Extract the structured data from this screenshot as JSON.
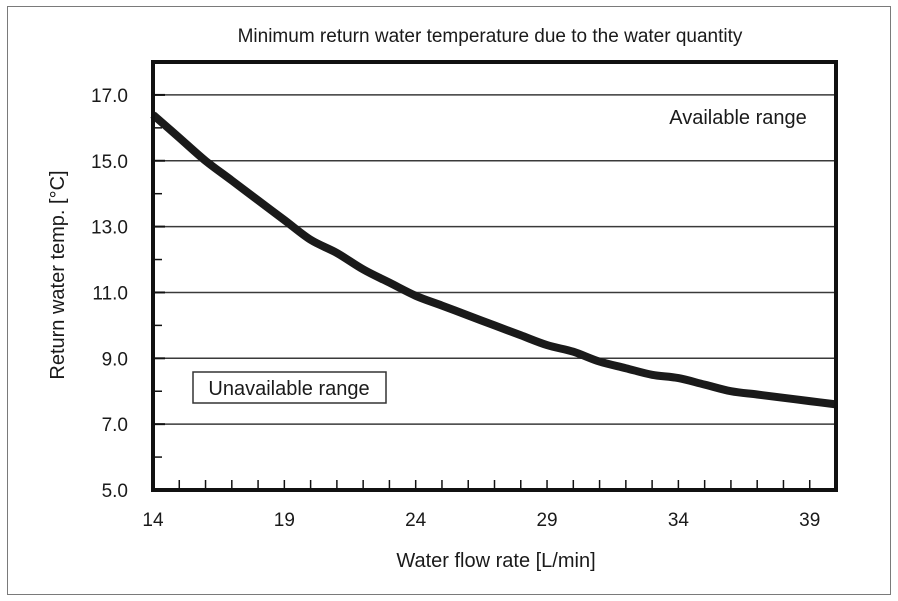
{
  "chart_data": {
    "type": "line",
    "title": "Minimum return water temperature due to the water quantity",
    "xlabel": "Water flow rate [L/min]",
    "ylabel": "Return water temp. [°C]",
    "xlim": [
      14,
      40
    ],
    "ylim": [
      5.0,
      18.0
    ],
    "x_ticks": [
      "14",
      "19",
      "24",
      "29",
      "34",
      "39"
    ],
    "y_ticks": [
      "5.0",
      "7.0",
      "9.0",
      "11.0",
      "13.0",
      "15.0",
      "17.0"
    ],
    "grid": "horizontal",
    "series": [
      {
        "x": [
          14,
          15,
          16,
          17,
          18,
          19,
          20,
          21,
          22,
          23,
          24,
          25,
          26,
          27,
          28,
          29,
          30,
          31,
          32,
          33,
          34,
          35,
          36,
          37,
          38,
          39,
          40
        ],
        "y": [
          16.4,
          15.7,
          15.0,
          14.4,
          13.8,
          13.2,
          12.6,
          12.2,
          11.7,
          11.3,
          10.9,
          10.6,
          10.3,
          10.0,
          9.7,
          9.4,
          9.2,
          8.9,
          8.7,
          8.5,
          8.4,
          8.2,
          8.0,
          7.9,
          7.8,
          7.7,
          7.6
        ]
      }
    ],
    "annotations": {
      "available": "Available range",
      "unavailable": "Unavailable range"
    }
  }
}
